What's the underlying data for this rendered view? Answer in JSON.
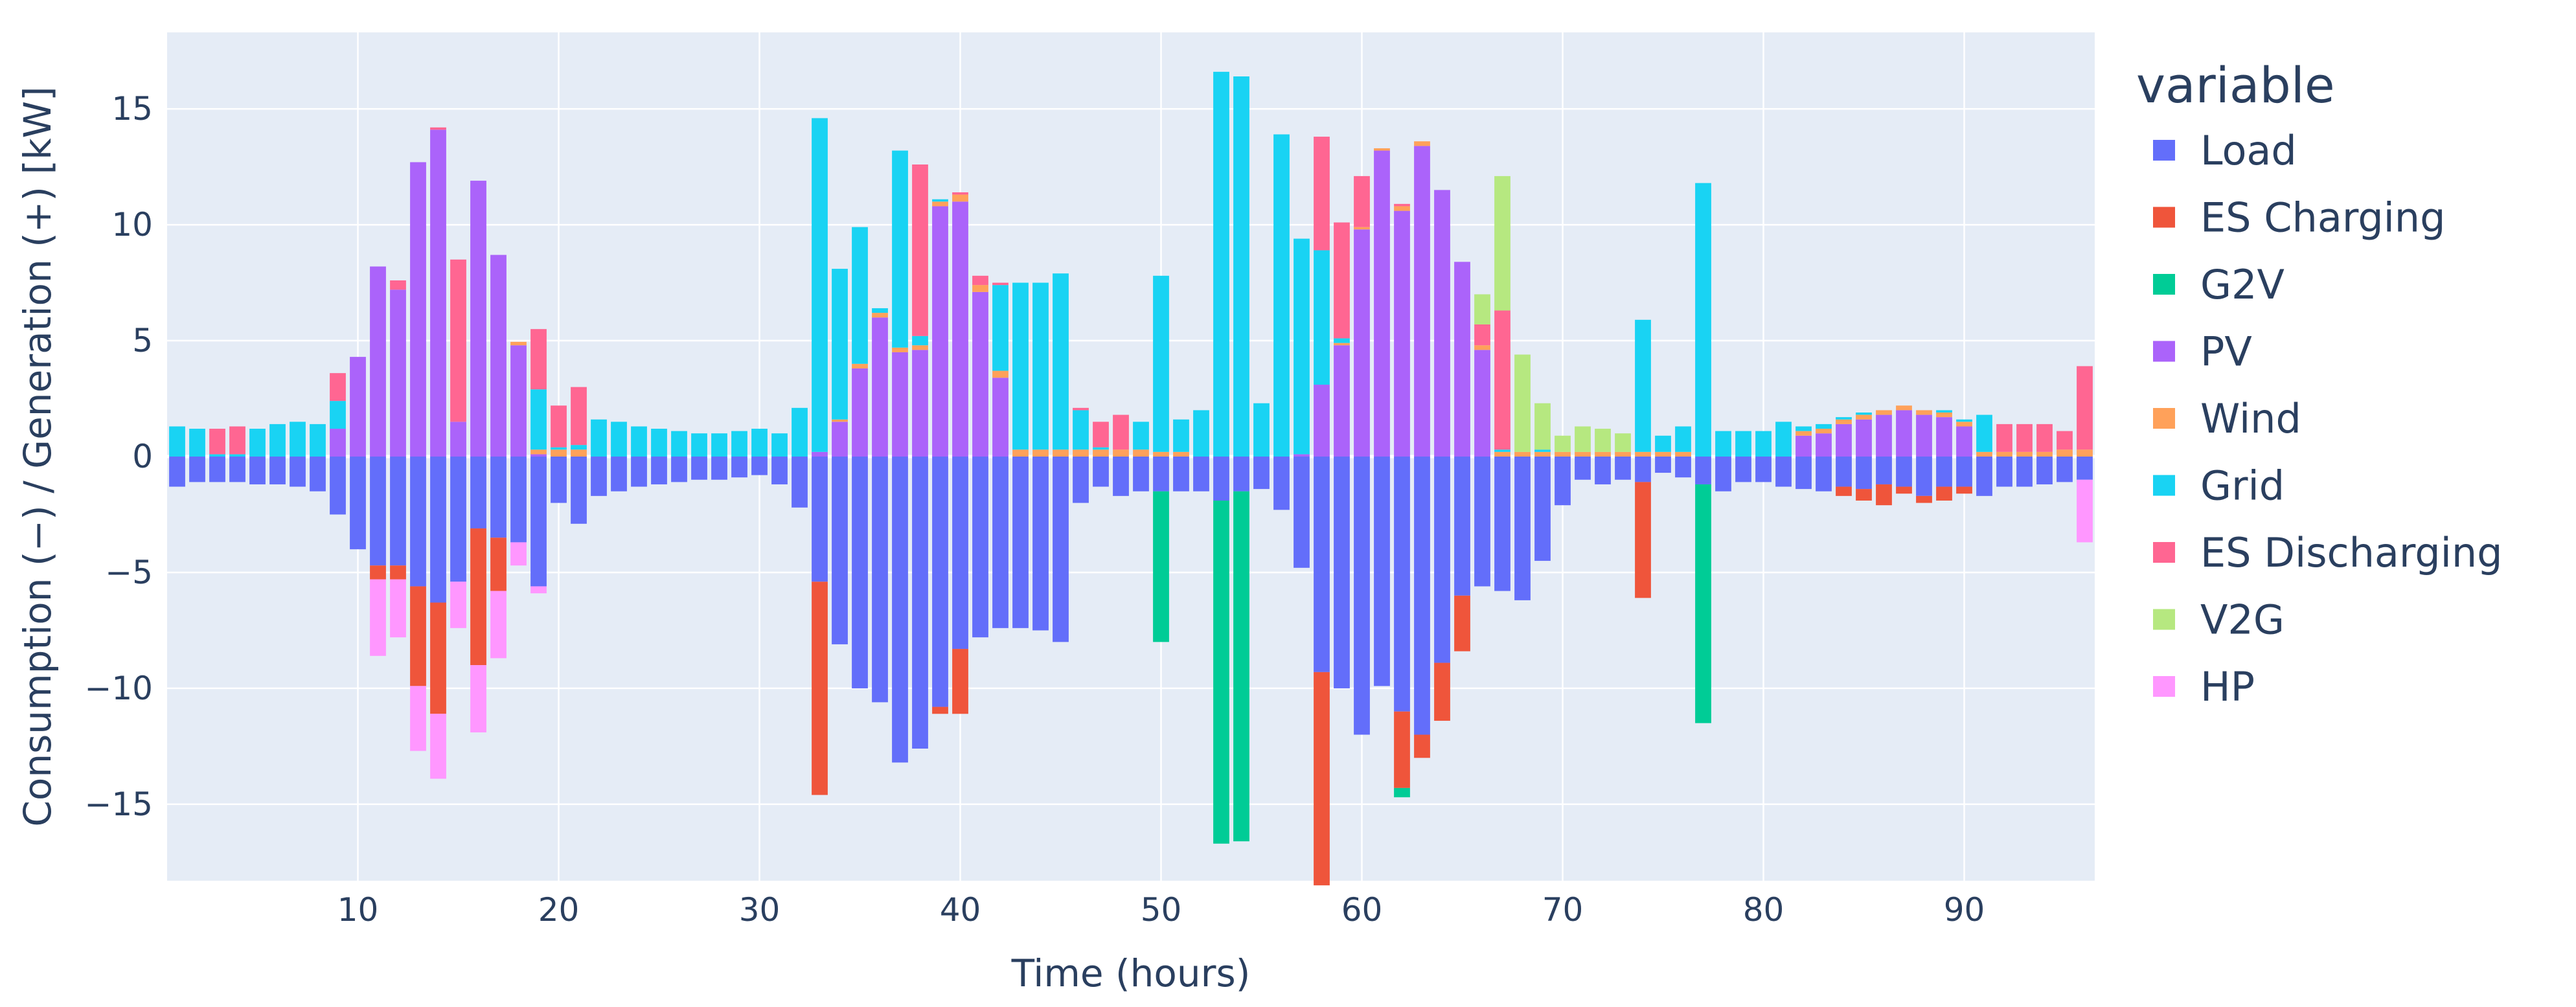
{
  "chart_data": {
    "type": "bar",
    "barmode": "relative",
    "xlabel": "Time (hours)",
    "ylabel": "Consumption (−) / Generation (+) [kW]",
    "xlim": [
      0.5,
      96.5
    ],
    "ylim": [
      -18.3,
      18.3
    ],
    "xticks": [
      10,
      20,
      30,
      40,
      50,
      60,
      70,
      80,
      90
    ],
    "yticks": [
      -15,
      -10,
      -5,
      0,
      5,
      10,
      15
    ],
    "legend_title": "variable",
    "legend_position": "right",
    "series": [
      {
        "name": "Load",
        "color": "#636efa",
        "values": {
          "1": -1.3,
          "2": -1.1,
          "3": -1.1,
          "4": -1.1,
          "5": -1.2,
          "6": -1.2,
          "7": -1.3,
          "8": -1.5,
          "9": -2.5,
          "10": -4.0,
          "11": -4.7,
          "12": -4.7,
          "13": -5.6,
          "14": -6.3,
          "15": -5.4,
          "16": -3.1,
          "17": -3.5,
          "18": -3.7,
          "19": -5.6,
          "20": -2.0,
          "21": -2.9,
          "22": -1.7,
          "23": -1.5,
          "24": -1.3,
          "25": -1.2,
          "26": -1.1,
          "27": -1.0,
          "28": -1.0,
          "29": -0.9,
          "30": -0.8,
          "31": -1.2,
          "32": -2.2,
          "33": -5.4,
          "34": -8.1,
          "35": -10.0,
          "36": -10.6,
          "37": -13.2,
          "38": -12.6,
          "39": -10.8,
          "40": -8.3,
          "41": -7.8,
          "42": -7.4,
          "43": -7.4,
          "44": -7.5,
          "45": -8.0,
          "46": -2.0,
          "47": -1.3,
          "48": -1.7,
          "49": -1.5,
          "50": -1.5,
          "51": -1.5,
          "52": -1.5,
          "53": -1.9,
          "54": -1.5,
          "55": -1.4,
          "56": -2.3,
          "57": -4.8,
          "58": -9.3,
          "59": -10.0,
          "60": -12.0,
          "61": -9.9,
          "62": -11.0,
          "63": -12.0,
          "64": -8.9,
          "65": -6.0,
          "66": -5.6,
          "67": -5.8,
          "68": -6.2,
          "69": -4.5,
          "70": -2.1,
          "71": -1.0,
          "72": -1.2,
          "73": -1.0,
          "74": -1.1,
          "75": -0.7,
          "76": -0.9,
          "77": -1.2,
          "78": -1.5,
          "79": -1.1,
          "80": -1.1,
          "81": -1.3,
          "82": -1.4,
          "83": -1.5,
          "84": -1.3,
          "85": -1.4,
          "86": -1.2,
          "87": -1.3,
          "88": -1.7,
          "89": -1.3,
          "90": -1.3,
          "91": -1.7,
          "92": -1.3,
          "93": -1.3,
          "94": -1.2,
          "95": -1.1,
          "96": -1.0
        }
      },
      {
        "name": "ES Charging",
        "color": "#ef553b",
        "values": {
          "11": -0.6,
          "12": -0.6,
          "13": -4.3,
          "14": -4.8,
          "16": -5.9,
          "17": -2.3,
          "33": -9.2,
          "39": -0.3,
          "40": -2.8,
          "58": -9.2,
          "62": -3.3,
          "63": -1.0,
          "64": -2.5,
          "65": -2.4,
          "74": -5.0,
          "84": -0.4,
          "85": -0.5,
          "86": -0.9,
          "87": -0.3,
          "88": -0.3,
          "89": -0.6,
          "90": -0.3
        }
      },
      {
        "name": "G2V",
        "color": "#00cc96",
        "values": {
          "50": -6.5,
          "53": -14.8,
          "54": -15.1,
          "62": -0.4,
          "77": -10.3
        }
      },
      {
        "name": "PV",
        "color": "#ab63fa",
        "values": {
          "9": 1.2,
          "10": 4.3,
          "11": 8.2,
          "12": 7.2,
          "13": 12.7,
          "14": 14.1,
          "15": 1.5,
          "16": 11.9,
          "17": 8.7,
          "18": 4.8,
          "19": 0.1,
          "33": 0.2,
          "34": 1.5,
          "35": 3.8,
          "36": 6.0,
          "37": 4.5,
          "38": 4.6,
          "39": 10.8,
          "40": 11.0,
          "41": 7.1,
          "42": 3.4,
          "57": 0.1,
          "58": 3.1,
          "59": 4.8,
          "60": 9.8,
          "61": 13.2,
          "62": 10.6,
          "63": 13.4,
          "64": 11.5,
          "65": 8.4,
          "66": 4.6,
          "82": 0.9,
          "83": 1.0,
          "84": 1.4,
          "85": 1.6,
          "86": 1.8,
          "87": 2.0,
          "88": 1.8,
          "89": 1.7,
          "90": 1.3
        }
      },
      {
        "name": "Wind",
        "color": "#ffa15a",
        "values": {
          "18": 0.15,
          "19": 0.2,
          "20": 0.3,
          "21": 0.3,
          "34": 0.1,
          "35": 0.2,
          "36": 0.2,
          "37": 0.2,
          "38": 0.2,
          "39": 0.2,
          "40": 0.3,
          "41": 0.3,
          "42": 0.3,
          "43": 0.3,
          "44": 0.3,
          "45": 0.3,
          "46": 0.3,
          "47": 0.3,
          "48": 0.3,
          "49": 0.3,
          "50": 0.2,
          "51": 0.2,
          "59": 0.1,
          "60": 0.1,
          "61": 0.1,
          "62": 0.2,
          "63": 0.2,
          "66": 0.2,
          "67": 0.2,
          "68": 0.2,
          "69": 0.2,
          "70": 0.2,
          "71": 0.2,
          "72": 0.2,
          "73": 0.2,
          "74": 0.2,
          "75": 0.2,
          "76": 0.2,
          "82": 0.2,
          "83": 0.2,
          "84": 0.2,
          "85": 0.2,
          "86": 0.2,
          "87": 0.2,
          "88": 0.2,
          "89": 0.2,
          "90": 0.2,
          "91": 0.2,
          "92": 0.2,
          "93": 0.2,
          "94": 0.2,
          "95": 0.3,
          "96": 0.3
        }
      },
      {
        "name": "Grid",
        "color": "#19d3f3",
        "values": {
          "1": 1.3,
          "2": 1.2,
          "3": 0.1,
          "4": 0.1,
          "5": 1.2,
          "6": 1.4,
          "7": 1.5,
          "8": 1.4,
          "9": 1.2,
          "19": 2.6,
          "20": 0.1,
          "21": 0.2,
          "22": 1.6,
          "23": 1.5,
          "24": 1.3,
          "25": 1.2,
          "26": 1.1,
          "27": 1.0,
          "28": 1.0,
          "29": 1.1,
          "30": 1.2,
          "31": 1.0,
          "32": 2.1,
          "33": 14.4,
          "34": 6.5,
          "35": 5.9,
          "36": 0.2,
          "37": 8.5,
          "38": 0.4,
          "39": 0.1,
          "42": 3.7,
          "43": 7.2,
          "44": 7.2,
          "45": 7.6,
          "46": 1.7,
          "47": 0.1,
          "49": 1.2,
          "50": 7.6,
          "51": 1.4,
          "52": 2.0,
          "53": 16.6,
          "54": 16.4,
          "55": 2.3,
          "56": 13.9,
          "57": 9.3,
          "58": 5.8,
          "59": 0.2,
          "67": 0.1,
          "69": 0.1,
          "74": 5.7,
          "75": 0.7,
          "76": 1.1,
          "77": 11.8,
          "78": 1.1,
          "79": 1.1,
          "80": 1.1,
          "81": 1.5,
          "82": 0.2,
          "83": 0.2,
          "84": 0.1,
          "85": 0.1,
          "89": 0.1,
          "90": 0.1,
          "91": 1.6
        }
      },
      {
        "name": "ES Discharging",
        "color": "#ff6692",
        "values": {
          "3": 1.1,
          "4": 1.2,
          "9": 1.2,
          "12": 0.4,
          "14": 0.1,
          "15": 7.0,
          "19": 2.6,
          "20": 1.8,
          "21": 2.5,
          "38": 7.4,
          "40": 0.1,
          "41": 0.4,
          "42": 0.1,
          "46": 0.1,
          "47": 1.1,
          "48": 1.5,
          "58": 4.9,
          "59": 5.0,
          "60": 2.2,
          "62": 0.1,
          "66": 0.9,
          "67": 6.0,
          "92": 1.2,
          "93": 1.2,
          "94": 1.2,
          "95": 0.8,
          "96": 3.6
        }
      },
      {
        "name": "V2G",
        "color": "#b6e880",
        "values": {
          "66": 1.3,
          "67": 5.8,
          "68": 4.2,
          "69": 2.0,
          "70": 0.7,
          "71": 1.1,
          "72": 1.0,
          "73": 0.8
        }
      },
      {
        "name": "HP",
        "color": "#ff97ff",
        "values": {
          "11": -3.3,
          "12": -2.5,
          "13": -2.8,
          "14": -2.8,
          "15": -2.0,
          "16": -2.9,
          "17": -2.9,
          "18": -1.0,
          "19": -0.3,
          "96": -2.7
        }
      }
    ]
  }
}
